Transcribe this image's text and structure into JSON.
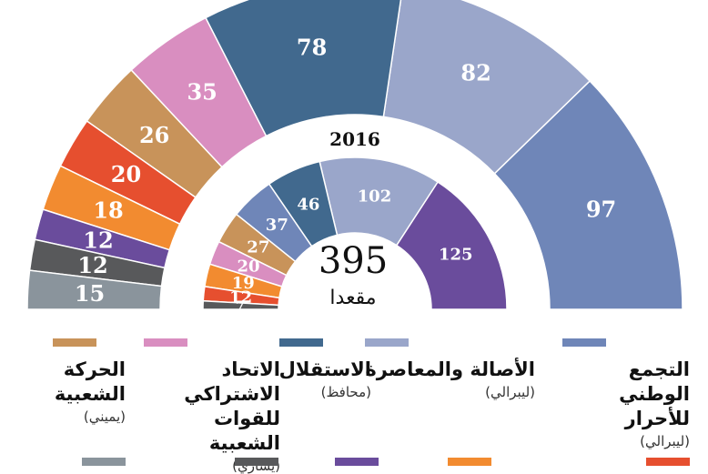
{
  "chart_data": [
    {
      "type": "pie",
      "subtype": "parliament-half-donut",
      "series": [
        {
          "name": "التجمع الوطني للأحرار",
          "value": 97,
          "color": "#6f86b8"
        },
        {
          "name": "الأصالة والمعاصرة",
          "value": 82,
          "color": "#9aa6ca"
        },
        {
          "name": "الاستقلال",
          "value": 78,
          "color": "#41698e"
        },
        {
          "name": "الاتحاد الاشتراكي للقوات الشعبية",
          "value": 35,
          "color": "#d98ec0"
        },
        {
          "name": "الحركة الشعبية",
          "value": 26,
          "color": "#c8935a"
        },
        {
          "name": "",
          "value": 20,
          "color": "#e64f2f"
        },
        {
          "name": "",
          "value": 18,
          "color": "#f28b30"
        },
        {
          "name": "",
          "value": 12,
          "color": "#6a4c9c"
        },
        {
          "name": "",
          "value": 12,
          "color": "#58595b"
        },
        {
          "name": "",
          "value": 15,
          "color": "#8a949c"
        }
      ]
    },
    {
      "type": "pie",
      "subtype": "parliament-half-donut",
      "title": "2016",
      "total_value": "395",
      "total_label": "مقعدا",
      "series": [
        {
          "name": "",
          "value": 125,
          "color": "#6a4c9c"
        },
        {
          "name": "",
          "value": 102,
          "color": "#9aa6ca"
        },
        {
          "name": "",
          "value": 46,
          "color": "#41698e"
        },
        {
          "name": "",
          "value": 37,
          "color": "#6f86b8"
        },
        {
          "name": "",
          "value": 27,
          "color": "#c8935a"
        },
        {
          "name": "",
          "value": 20,
          "color": "#d98ec0"
        },
        {
          "name": "",
          "value": 19,
          "color": "#f28b30"
        },
        {
          "name": "",
          "value": 12,
          "color": "#e64f2f"
        },
        {
          "name": "",
          "value": 7,
          "color": "#58595b"
        }
      ]
    }
  ],
  "legend": [
    {
      "name": "التجمع الوطني للأحرار",
      "ideology": "(ليبرالي)",
      "color": "#6f86b8"
    },
    {
      "name": "الأصالة والمعاصرة",
      "ideology": "(ليبرالي)",
      "color": "#9aa6ca"
    },
    {
      "name": "الاستقلال",
      "ideology": "(محافظ)",
      "color": "#41698e"
    },
    {
      "name": "الاتحاد الاشتراكي للقوات الشعبية",
      "ideology": "(يساري)",
      "color": "#d98ec0"
    },
    {
      "name": "الحركة الشعبية",
      "ideology": "(يميني)",
      "color": "#c8935a"
    }
  ],
  "legend_row2_colors": [
    "#e64f2f",
    "#f28b30",
    "#6a4c9c",
    "#58595b",
    "#8a949c"
  ]
}
